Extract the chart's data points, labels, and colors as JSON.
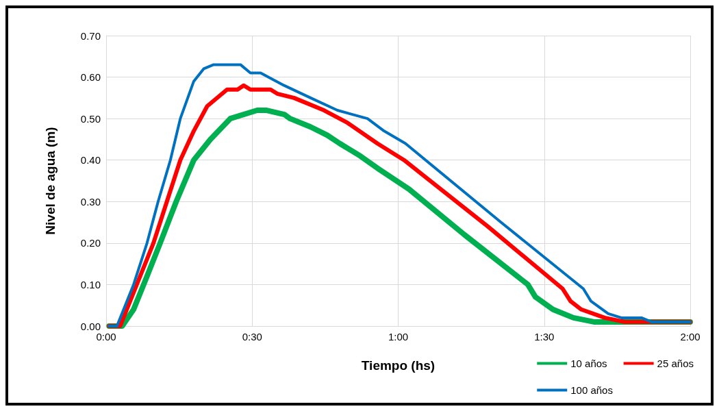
{
  "chart_data": {
    "type": "line",
    "xlabel": "Tiempo (hs)",
    "ylabel": "Nivel de agua (m)",
    "xlim": [
      0,
      2
    ],
    "xticks": [
      {
        "value": 0,
        "label": "0:00"
      },
      {
        "value": 0.5,
        "label": "0:30"
      },
      {
        "value": 1,
        "label": "1:00"
      },
      {
        "value": 1.5,
        "label": "1:30"
      },
      {
        "value": 2,
        "label": "2:00"
      }
    ],
    "ylim": [
      0,
      0.7
    ],
    "yticks": [
      {
        "value": 0,
        "label": "0.00"
      },
      {
        "value": 0.1,
        "label": "0.10"
      },
      {
        "value": 0.2,
        "label": "0.20"
      },
      {
        "value": 0.3,
        "label": "0.30"
      },
      {
        "value": 0.4,
        "label": "0.40"
      },
      {
        "value": 0.5,
        "label": "0.50"
      },
      {
        "value": 0.6,
        "label": "0.60"
      },
      {
        "value": 0.7,
        "label": "0.70"
      }
    ],
    "grid": true,
    "legend": "bottom right",
    "marker": "none",
    "line_style": "solid",
    "series": [
      {
        "name": "10 años",
        "color": "#00b050",
        "x": [
          0.01,
          0.055,
          0.094,
          0.14,
          0.185,
          0.24,
          0.3,
          0.357,
          0.425,
          0.517,
          0.55,
          0.61,
          0.63,
          0.7,
          0.757,
          0.8,
          0.87,
          0.93,
          1.037,
          1.227,
          1.444,
          1.47,
          1.53,
          1.6,
          1.67,
          2.0
        ],
        "values": [
          0,
          0,
          0.04,
          0.12,
          0.2,
          0.3,
          0.4,
          0.45,
          0.5,
          0.52,
          0.52,
          0.51,
          0.5,
          0.48,
          0.46,
          0.44,
          0.41,
          0.38,
          0.33,
          0.22,
          0.1,
          0.07,
          0.04,
          0.02,
          0.01,
          0.01
        ]
      },
      {
        "name": "25 años",
        "color": "#ff0000",
        "x": [
          0.01,
          0.048,
          0.105,
          0.162,
          0.208,
          0.254,
          0.3,
          0.346,
          0.414,
          0.45,
          0.471,
          0.494,
          0.563,
          0.586,
          0.643,
          0.746,
          0.826,
          0.929,
          1.02,
          1.307,
          1.563,
          1.59,
          1.627,
          1.707,
          1.776,
          2.0
        ],
        "values": [
          0,
          0,
          0.1,
          0.2,
          0.3,
          0.4,
          0.47,
          0.53,
          0.57,
          0.57,
          0.58,
          0.57,
          0.57,
          0.56,
          0.55,
          0.52,
          0.49,
          0.44,
          0.4,
          0.24,
          0.09,
          0.06,
          0.04,
          0.02,
          0.01,
          0.01
        ]
      },
      {
        "name": "100 años",
        "color": "#0070c0",
        "x": [
          0.01,
          0.037,
          0.094,
          0.14,
          0.178,
          0.22,
          0.254,
          0.3,
          0.334,
          0.368,
          0.46,
          0.494,
          0.529,
          0.609,
          0.7,
          0.792,
          0.895,
          0.952,
          1.025,
          1.352,
          1.634,
          1.66,
          1.719,
          1.764,
          1.833,
          1.867,
          2.0
        ],
        "values": [
          0,
          0,
          0.1,
          0.2,
          0.3,
          0.4,
          0.5,
          0.59,
          0.62,
          0.63,
          0.63,
          0.61,
          0.61,
          0.58,
          0.55,
          0.52,
          0.5,
          0.47,
          0.44,
          0.25,
          0.09,
          0.06,
          0.03,
          0.02,
          0.02,
          0.01,
          0.01
        ]
      }
    ]
  }
}
